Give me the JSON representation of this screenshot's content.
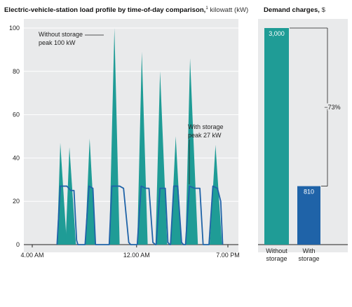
{
  "charts": {
    "load": {
      "title": "Electric-vehicle-station load profile by time-of-day comparison,",
      "footnote_marker": "1",
      "unit": "kilowatt (kW)"
    },
    "demand": {
      "title": "Demand charges,",
      "unit": "$"
    }
  },
  "chart_data": [
    {
      "type": "area",
      "title": "Electric-vehicle-station load profile by time-of-day comparison",
      "ylabel": "kilowatt (kW)",
      "ylim": [
        0,
        100
      ],
      "yticks": [
        0,
        20,
        40,
        60,
        80,
        100
      ],
      "xlim": [
        4,
        19.5
      ],
      "xticks": [
        {
          "value": 4,
          "label": "4.00 AM"
        },
        {
          "value": 12,
          "label": "12.00 AM"
        },
        {
          "value": 19,
          "label": "7.00 PM"
        }
      ],
      "grid": true,
      "series": [
        {
          "name": "Without storage",
          "color": "#1f9c96",
          "peaks": [
            {
              "start": 5.9,
              "peak_x": 6.15,
              "end": 6.65,
              "peak": 47
            },
            {
              "start": 6.55,
              "peak_x": 6.85,
              "end": 7.35,
              "peak": 45
            },
            {
              "start": 8.05,
              "peak_x": 8.4,
              "end": 8.85,
              "peak": 49
            },
            {
              "start": 9.9,
              "peak_x": 10.3,
              "end": 10.7,
              "peak": 100
            },
            {
              "start": 12.05,
              "peak_x": 12.4,
              "end": 12.85,
              "peak": 89
            },
            {
              "start": 13.45,
              "peak_x": 13.8,
              "end": 14.35,
              "peak": 80
            },
            {
              "start": 14.6,
              "peak_x": 15.0,
              "end": 15.45,
              "peak": 50
            },
            {
              "start": 15.75,
              "peak_x": 16.1,
              "end": 16.7,
              "peak": 86
            },
            {
              "start": 17.6,
              "peak_x": 18.05,
              "end": 18.55,
              "peak": 46
            }
          ]
        },
        {
          "name": "With storage",
          "color": "#1f63a8",
          "x": [
            5.9,
            6.15,
            6.25,
            6.65,
            6.95,
            7.2,
            7.4,
            7.5,
            8.05,
            8.35,
            8.65,
            8.85,
            9.0,
            9.9,
            10.1,
            10.4,
            10.7,
            11.0,
            11.4,
            11.55,
            12.05,
            12.35,
            12.7,
            12.95,
            13.25,
            13.45,
            13.5,
            13.8,
            14.2,
            14.4,
            14.55,
            14.6,
            14.85,
            15.15,
            15.45,
            15.6,
            15.75,
            16.05,
            16.45,
            16.85,
            17.1,
            17.55,
            17.85,
            18.2,
            18.45,
            18.6
          ],
          "y": [
            0,
            27,
            27,
            27,
            25,
            25,
            2,
            0,
            0,
            27,
            26,
            0,
            0,
            0,
            27,
            27,
            27,
            26,
            1,
            0,
            0,
            27,
            26,
            26,
            1,
            0,
            0,
            26,
            26,
            1,
            0,
            0,
            27,
            27,
            1,
            0,
            0,
            27,
            26,
            26,
            0,
            0,
            27,
            26,
            20,
            0
          ]
        }
      ],
      "annotations": [
        {
          "lines": [
            "Without storage",
            "peak 100 kW"
          ]
        },
        {
          "lines": [
            "With storage",
            "peak 27 kW"
          ]
        }
      ]
    },
    {
      "type": "bar",
      "title": "Demand charges",
      "ylabel": "$",
      "categories": [
        "Without storage",
        "With storage"
      ],
      "category_lines": [
        [
          "Without",
          "storage"
        ],
        [
          "With",
          "storage"
        ]
      ],
      "values": [
        3000,
        810
      ],
      "value_labels": [
        "3,000",
        "810"
      ],
      "colors": [
        "#1f9c96",
        "#1f63a8"
      ],
      "ylim": [
        0,
        3000
      ],
      "annotation": "−73%"
    }
  ]
}
